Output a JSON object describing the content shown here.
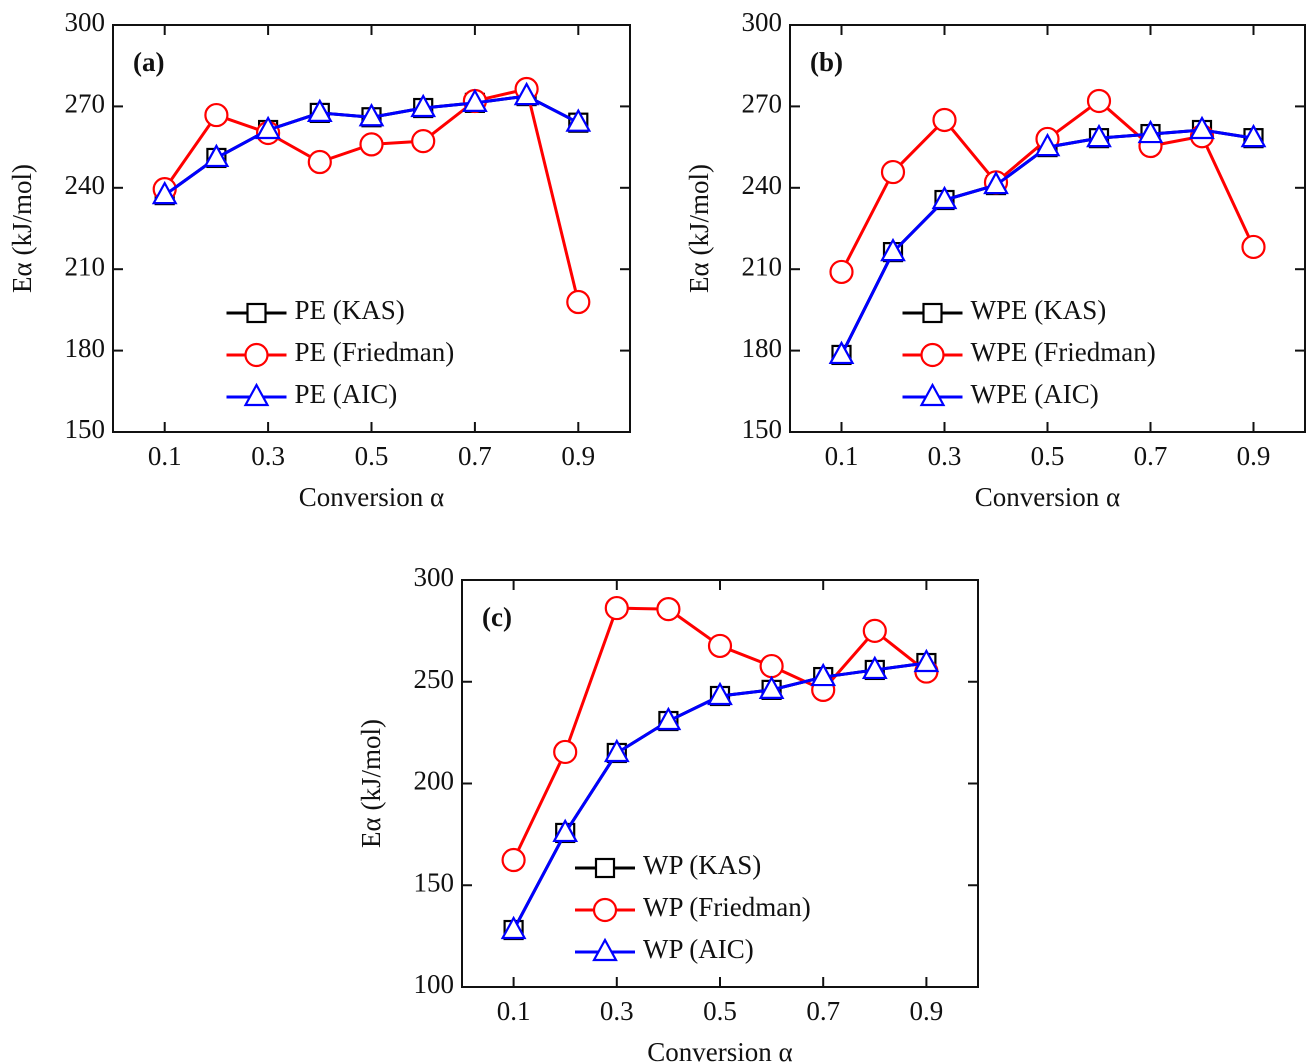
{
  "chart_data": [
    {
      "type": "line",
      "panel_label": "(a)",
      "x_label": "Conversion α",
      "y_label": "Eα (kJ/mol)",
      "x": [
        0.1,
        0.2,
        0.3,
        0.4,
        0.5,
        0.6,
        0.7,
        0.8,
        0.9
      ],
      "series": [
        {
          "name": "PE (KAS)",
          "color": "#000000",
          "marker": "square",
          "values": [
            237.3,
            251,
            261.3,
            267.6,
            266,
            269.4,
            271.3,
            273.8,
            264
          ]
        },
        {
          "name": "PE (Friedman)",
          "color": "#ff0000",
          "marker": "circle",
          "values": [
            239.5,
            266.8,
            260.2,
            249.5,
            256,
            257.2,
            272,
            276.4,
            197.9
          ]
        },
        {
          "name": "PE (AIC)",
          "color": "#0000ff",
          "marker": "triangle",
          "values": [
            237.3,
            251,
            261.3,
            267.6,
            266,
            269.4,
            271.3,
            273.8,
            264
          ]
        }
      ],
      "xlim": [
        0,
        1
      ],
      "ylim": [
        150,
        300
      ],
      "xticks": [
        0.1,
        0.3,
        0.5,
        0.7,
        0.9
      ],
      "yticks": [
        150,
        180,
        210,
        240,
        270,
        300
      ],
      "legend": "lower center"
    },
    {
      "type": "line",
      "panel_label": "(b)",
      "x_label": "Conversion α",
      "y_label": "Eα (kJ/mol)",
      "x": [
        0.1,
        0.2,
        0.3,
        0.4,
        0.5,
        0.6,
        0.7,
        0.8,
        0.9
      ],
      "series": [
        {
          "name": "WPE (KAS)",
          "color": "#000000",
          "marker": "square",
          "values": [
            178.4,
            216.3,
            235.5,
            241,
            255,
            258.3,
            259.8,
            261.3,
            258.3
          ]
        },
        {
          "name": "WPE (Friedman)",
          "color": "#ff0000",
          "marker": "circle",
          "values": [
            209,
            245.8,
            265,
            242,
            258,
            272,
            255.4,
            259,
            218.2
          ]
        },
        {
          "name": "WPE (AIC)",
          "color": "#0000ff",
          "marker": "triangle",
          "values": [
            178.4,
            216.3,
            235.5,
            241,
            255,
            258.3,
            259.8,
            261.3,
            258.3
          ]
        }
      ],
      "xlim": [
        0,
        1
      ],
      "ylim": [
        150,
        300
      ],
      "xticks": [
        0.1,
        0.3,
        0.5,
        0.7,
        0.9
      ],
      "yticks": [
        150,
        180,
        210,
        240,
        270,
        300
      ],
      "legend": "lower center"
    },
    {
      "type": "line",
      "panel_label": "(c)",
      "x_label": "Conversion α",
      "y_label": "Eα (kJ/mol)",
      "x": [
        0.1,
        0.2,
        0.3,
        0.4,
        0.5,
        0.6,
        0.7,
        0.8,
        0.9
      ],
      "series": [
        {
          "name": "WP (KAS)",
          "color": "#000000",
          "marker": "square",
          "values": [
            128,
            175.7,
            215,
            230.7,
            243,
            246,
            252.3,
            255.8,
            259.2
          ]
        },
        {
          "name": "WP (Friedman)",
          "color": "#ff0000",
          "marker": "circle",
          "values": [
            162.4,
            215.5,
            286.2,
            285.7,
            267.6,
            257.7,
            246,
            275,
            255
          ]
        },
        {
          "name": "WP (AIC)",
          "color": "#0000ff",
          "marker": "triangle",
          "values": [
            128,
            175.7,
            215,
            230.7,
            243,
            246,
            252.3,
            255.8,
            259.2
          ]
        }
      ],
      "xlim": [
        0,
        1
      ],
      "ylim": [
        100,
        300
      ],
      "xticks": [
        0.1,
        0.3,
        0.5,
        0.7,
        0.9
      ],
      "yticks": [
        100,
        150,
        200,
        250,
        300
      ],
      "legend": "lower center"
    }
  ]
}
